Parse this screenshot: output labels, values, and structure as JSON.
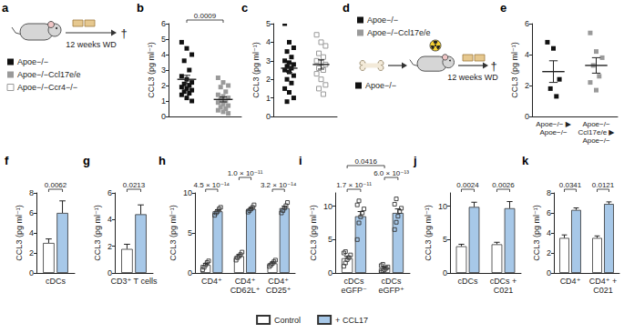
{
  "chart_data": [
    {
      "panel": "b",
      "type": "dot",
      "ylabel": "CCL3 (pg ml⁻¹)",
      "tick_labels": "y",
      "grid": false,
      "ylim": [
        0,
        6
      ],
      "yticks": [
        0,
        1,
        2,
        3,
        4,
        5,
        6
      ],
      "series": [
        {
          "name": "Apoe−/−",
          "color": "#111111",
          "marker": "square",
          "values": [
            4.8,
            4.4,
            4.0,
            3.6,
            3.0,
            2.6,
            2.4,
            2.2,
            2.1,
            2.0,
            1.9,
            1.8,
            1.7,
            1.6,
            1.5,
            1.4,
            1.2,
            1.0
          ],
          "mean": 2.4,
          "sem": 0.26
        },
        {
          "name": "Apoe−/−Ccl17e/e",
          "color": "#9a9a9a",
          "marker": "square",
          "values": [
            2.5,
            2.2,
            2.0,
            1.9,
            1.6,
            1.4,
            1.3,
            1.2,
            1.1,
            1.0,
            0.9,
            0.8,
            0.7,
            0.6,
            0.5,
            0.4,
            0.3,
            0.2
          ],
          "mean": 1.1,
          "sem": 0.16
        }
      ],
      "annotations": [
        {
          "from": 0,
          "to": 1,
          "label": "0.0009"
        }
      ]
    },
    {
      "panel": "c",
      "type": "dot",
      "ylabel": "CCL3 (pg ml⁻¹)",
      "tick_labels": "y",
      "grid": false,
      "ylim": [
        0,
        5
      ],
      "yticks": [
        0,
        1,
        2,
        3,
        4,
        5
      ],
      "series": [
        {
          "name": "Apoe−/−",
          "color": "#111111",
          "marker": "square",
          "values": [
            5.0,
            4.0,
            3.7,
            3.5,
            3.2,
            3.0,
            2.9,
            2.8,
            2.7,
            2.6,
            2.5,
            2.4,
            2.2,
            2.0,
            1.8,
            1.5,
            1.3,
            1.0,
            0.8
          ],
          "mean": 2.6,
          "sem": 0.23
        },
        {
          "name": "Apoe−/−Ccr4−/−",
          "color": "#9a9a9a",
          "marker": "open_square",
          "values": [
            4.4,
            4.0,
            3.8,
            3.4,
            3.2,
            3.0,
            2.9,
            2.8,
            2.6,
            2.5,
            2.3,
            2.0,
            1.7,
            1.5,
            1.2
          ],
          "mean": 2.8,
          "sem": 0.25
        }
      ]
    },
    {
      "panel": "e",
      "type": "dot",
      "ylabel": "CCL3 (pg ml⁻¹)",
      "grid": false,
      "ylim": [
        0,
        6
      ],
      "yticks": [
        0,
        2,
        4,
        6
      ],
      "series": [
        {
          "name": "Apoe−/− ▶ Apoe−/−",
          "color": "#111111",
          "marker": "square",
          "values": [
            4.8,
            4.4,
            2.4,
            1.8,
            1.3
          ],
          "mean": 2.9,
          "sem": 0.7
        },
        {
          "name": "Apoe−/−Ccl17e/e ▶ Apoe−/−",
          "color": "#9a9a9a",
          "marker": "square",
          "values": [
            5.4,
            4.2,
            3.8,
            3.3,
            2.6,
            2.2,
            1.7
          ],
          "mean": 3.3,
          "sem": 0.5
        }
      ]
    },
    {
      "panel": "f",
      "type": "bar",
      "ylabel": "CCL3 (pg ml⁻¹)",
      "grid": false,
      "legend": "bottom",
      "categories": [
        "cDCs"
      ],
      "ylim": [
        0,
        8
      ],
      "yticks": [
        0,
        2,
        4,
        6,
        8
      ],
      "series": [
        {
          "name": "Control",
          "color": "#ffffff",
          "values": [
            3.0
          ],
          "errors": [
            0.4
          ]
        },
        {
          "name": "+ CCL17",
          "color": "#a7c8e8",
          "values": [
            6.0
          ],
          "errors": [
            1.2
          ]
        }
      ],
      "annotations": [
        {
          "from": [
            0,
            0
          ],
          "to": [
            0,
            1
          ],
          "label": "0.0062"
        }
      ]
    },
    {
      "panel": "g",
      "type": "bar",
      "ylabel": "CCL3 (pg ml⁻¹)",
      "grid": false,
      "legend": "bottom",
      "categories": [
        "CD3⁺ T cells"
      ],
      "ylim": [
        0,
        6
      ],
      "yticks": [
        0,
        2,
        4,
        6
      ],
      "series": [
        {
          "name": "Control",
          "color": "#ffffff",
          "values": [
            1.8
          ],
          "errors": [
            0.35
          ]
        },
        {
          "name": "+ CCL17",
          "color": "#a7c8e8",
          "values": [
            4.4
          ],
          "errors": [
            0.7
          ]
        }
      ],
      "annotations": [
        {
          "from": [
            0,
            0
          ],
          "to": [
            0,
            1
          ],
          "label": "0.0213"
        }
      ]
    },
    {
      "panel": "h",
      "type": "bar",
      "ylabel": "CCL3 (pg ml⁻¹)",
      "grid": false,
      "legend": "bottom",
      "categories": [
        "CD4⁺",
        "CD4⁺ CD62L⁺",
        "CD4⁺ CD25⁺"
      ],
      "ylim": [
        0,
        10
      ],
      "yticks": [
        0,
        5,
        10
      ],
      "series": [
        {
          "name": "Control",
          "color": "#ffffff",
          "values": [
            1.0,
            2.1,
            1.2
          ],
          "errors": [
            0.2,
            0.2,
            0.15
          ],
          "points": [
            [
              0.4,
              0.7,
              1.0,
              1.3,
              1.5
            ],
            [
              1.6,
              1.9,
              2.1,
              2.3,
              2.6
            ],
            [
              0.8,
              1.0,
              1.2,
              1.4,
              1.6
            ]
          ]
        },
        {
          "name": "+ CCL17",
          "color": "#a7c8e8",
          "values": [
            7.7,
            8.0,
            8.1
          ],
          "errors": [
            0.2,
            0.15,
            0.25
          ],
          "points": [
            [
              7.2,
              7.5,
              7.7,
              8.0,
              8.2
            ],
            [
              7.6,
              7.8,
              8.0,
              8.2,
              8.5
            ],
            [
              7.5,
              7.8,
              8.1,
              8.4,
              8.8
            ]
          ]
        }
      ],
      "annotations": [
        {
          "from": [
            0,
            0
          ],
          "to": [
            0,
            1
          ],
          "label": "4.5 × 10⁻¹⁴"
        },
        {
          "from": [
            1,
            0
          ],
          "to": [
            1,
            1
          ],
          "label": "1.0 × 10⁻¹¹"
        },
        {
          "from": [
            2,
            0
          ],
          "to": [
            2,
            1
          ],
          "label": "3.2 × 10⁻¹⁴"
        }
      ]
    },
    {
      "panel": "i",
      "type": "bar",
      "ylabel": "CCL3 (pg ml⁻¹)",
      "grid": false,
      "legend": "bottom",
      "categories": [
        "cDCs eGFP⁻",
        "cDCs eGFP⁺"
      ],
      "ylim": [
        0,
        12
      ],
      "yticks": [
        0,
        5,
        10
      ],
      "series": [
        {
          "name": "Control",
          "color": "#ffffff",
          "values": [
            2.2,
            0.7
          ],
          "errors": [
            0.3,
            0.2
          ],
          "points": [
            [
              1.0,
              1.5,
              2.0,
              2.3,
              2.7,
              3.0,
              3.2
            ],
            [
              0.1,
              0.3,
              0.5,
              0.7,
              0.9,
              1.1,
              1.3
            ]
          ]
        },
        {
          "name": "+ CCL17",
          "color": "#a7c8e8",
          "values": [
            8.5,
            9.0
          ],
          "errors": [
            0.7,
            0.6
          ],
          "points": [
            [
              5.0,
              7.5,
              8.4,
              9.0,
              9.6,
              10.2,
              10.8
            ],
            [
              6.5,
              7.6,
              8.5,
              9.2,
              9.7,
              10.3,
              11.1
            ]
          ]
        }
      ],
      "annotations": [
        {
          "from": [
            0,
            0
          ],
          "to": [
            0,
            1
          ],
          "label": "1.7 × 10⁻¹¹"
        },
        {
          "from": [
            1,
            0
          ],
          "to": [
            1,
            1
          ],
          "label": "6.0 × 10⁻¹³"
        },
        {
          "from": [
            0,
            0
          ],
          "to": [
            1,
            0
          ],
          "label": "0.0416"
        }
      ]
    },
    {
      "panel": "j",
      "type": "bar",
      "ylabel": "CCL3 (pg ml⁻¹)",
      "grid": false,
      "legend": "bottom",
      "categories": [
        "cDCs",
        "cDCs + C021"
      ],
      "ylim": [
        0,
        12
      ],
      "yticks": [
        0,
        5,
        10
      ],
      "series": [
        {
          "name": "Control",
          "color": "#ffffff",
          "values": [
            4.0,
            4.3
          ],
          "errors": [
            0.3,
            0.3
          ]
        },
        {
          "name": "+ CCL17",
          "color": "#a7c8e8",
          "values": [
            9.9,
            9.7
          ],
          "errors": [
            0.7,
            1.0
          ]
        }
      ],
      "annotations": [
        {
          "from": [
            0,
            0
          ],
          "to": [
            0,
            1
          ],
          "label": "0.0024"
        },
        {
          "from": [
            1,
            0
          ],
          "to": [
            1,
            1
          ],
          "label": "0.0026"
        }
      ]
    },
    {
      "panel": "k",
      "type": "bar",
      "ylabel": "CCL3 (pg ml⁻¹)",
      "grid": false,
      "legend": "bottom",
      "categories": [
        "CD4⁺",
        "CD4⁺ + C021"
      ],
      "ylim": [
        0,
        8
      ],
      "yticks": [
        0,
        2,
        4,
        6,
        8
      ],
      "series": [
        {
          "name": "Control",
          "color": "#ffffff",
          "values": [
            3.5,
            3.5
          ],
          "errors": [
            0.3,
            0.2
          ]
        },
        {
          "name": "+ CCL17",
          "color": "#a7c8e8",
          "values": [
            6.3,
            6.9
          ],
          "errors": [
            0.2,
            0.2
          ]
        }
      ],
      "annotations": [
        {
          "from": [
            0,
            0
          ],
          "to": [
            0,
            1
          ],
          "label": "0.0341"
        },
        {
          "from": [
            1,
            0
          ],
          "to": [
            1,
            1
          ],
          "label": "0.0121"
        }
      ]
    }
  ],
  "schematics": [
    {
      "panel": "a",
      "diet": "12 weeks WD",
      "endpoint": "†"
    },
    {
      "panel": "d",
      "donors": [
        {
          "name": "Apoe−/−",
          "color": "#111111"
        },
        {
          "name": "Apoe−/−Ccl17e/e",
          "color": "#9a9a9a"
        }
      ],
      "source": {
        "name": "Apoe−/−",
        "color": "#111111"
      },
      "diet": "12 weeks WD",
      "endpoint": "†"
    }
  ]
}
